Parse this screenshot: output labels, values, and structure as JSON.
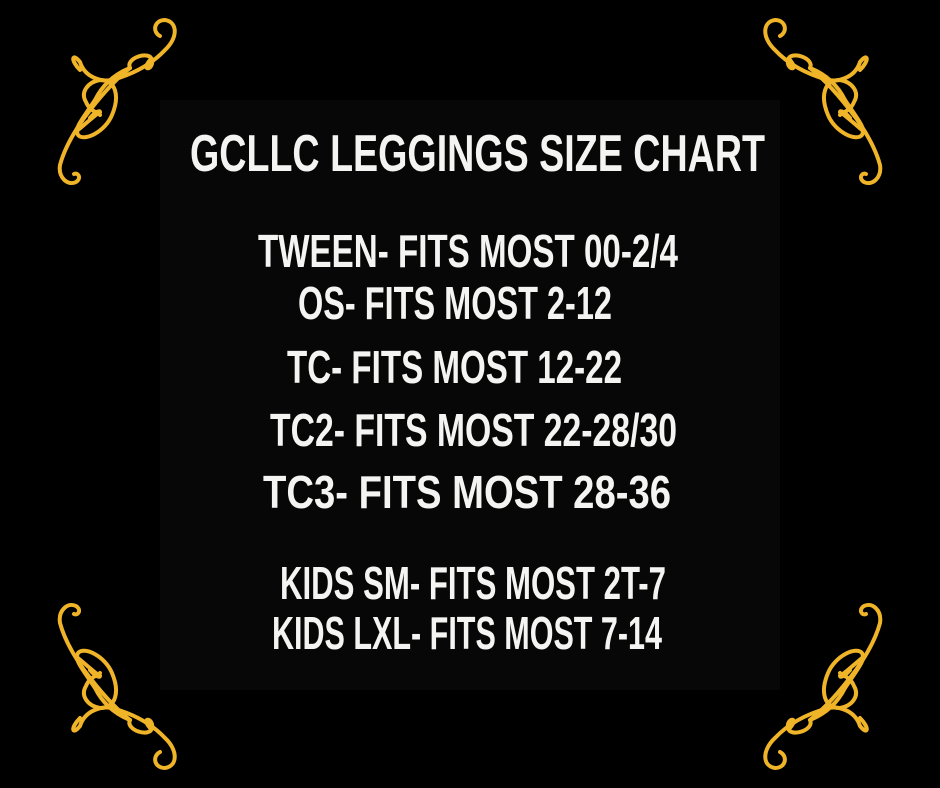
{
  "title": "GCLLC LEGGINGS SIZE CHART",
  "sizes": [
    "TWEEN- FITS MOST 00-2/4",
    "OS- FITS MOST 2-12",
    "TC- FITS MOST 12-22",
    "TC2- FITS MOST 22-28/30",
    "TC3- FITS MOST 28-36"
  ],
  "kids_sizes": [
    "KIDS SM- FITS MOST 2T-7",
    "KIDS LXL- FITS MOST 7-14"
  ],
  "colors": {
    "background": "#000000",
    "text": "#f4f4f2",
    "ornament": "#f0b429"
  },
  "ornament_icon": "gold-scroll-flourish"
}
